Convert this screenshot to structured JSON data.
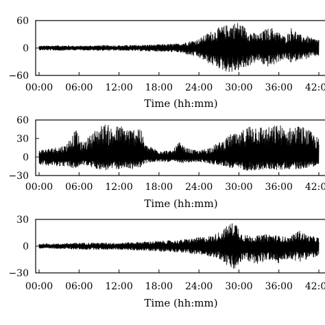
{
  "chart_data": [
    {
      "type": "line",
      "title": "",
      "xlabel": "Time (hh:mm)",
      "ylabel": "",
      "xlim": [
        "00:00",
        "42:00"
      ],
      "ylim": [
        -60,
        60
      ],
      "x_ticks": [
        "00:00",
        "06:00",
        "12:00",
        "18:00",
        "24:00",
        "30:00",
        "36:00",
        "42:00"
      ],
      "y_ticks": [
        "60",
        "0",
        "−60"
      ],
      "grid": false,
      "series": [
        {
          "x": [
            "00:00",
            "03:00",
            "06:00",
            "09:00",
            "12:00",
            "15:00",
            "18:00",
            "21:00",
            "24:00",
            "25:30",
            "27:00",
            "28:00",
            "29:00",
            "30:00",
            "31:00",
            "32:00",
            "33:00",
            "34:00",
            "35:00",
            "36:00",
            "37:00",
            "38:00",
            "39:00",
            "40:00",
            "41:00",
            "42:00"
          ],
          "upper": [
            5,
            6,
            5,
            6,
            6,
            7,
            8,
            10,
            20,
            35,
            45,
            50,
            55,
            58,
            45,
            35,
            30,
            42,
            45,
            35,
            25,
            48,
            30,
            28,
            22,
            20
          ],
          "lower": [
            -5,
            -6,
            -5,
            -6,
            -6,
            -7,
            -8,
            -10,
            -22,
            -35,
            -45,
            -52,
            -55,
            -50,
            -45,
            -35,
            -30,
            -42,
            -40,
            -30,
            -25,
            -35,
            -25,
            -25,
            -20,
            -18
          ]
        }
      ]
    },
    {
      "type": "line",
      "title": "",
      "xlabel": "Time (hh:mm)",
      "ylabel": "",
      "xlim": [
        "00:00",
        "42:00"
      ],
      "ylim": [
        -30,
        60
      ],
      "x_ticks": [
        "00:00",
        "06:00",
        "12:00",
        "18:00",
        "24:00",
        "30:00",
        "36:00",
        "42:00"
      ],
      "y_ticks": [
        "60",
        "30",
        "0",
        "−30"
      ],
      "grid": false,
      "series": [
        {
          "x": [
            "00:00",
            "02:00",
            "04:00",
            "05:30",
            "06:30",
            "08:00",
            "09:00",
            "10:00",
            "11:00",
            "12:00",
            "13:00",
            "14:00",
            "15:00",
            "16:00",
            "18:00",
            "20:00",
            "21:00",
            "22:00",
            "24:00",
            "26:00",
            "28:00",
            "29:00",
            "30:00",
            "31:00",
            "32:00",
            "33:00",
            "34:00",
            "35:00",
            "36:00",
            "37:00",
            "38:00",
            "39:00",
            "40:00",
            "41:00",
            "42:00"
          ],
          "upper": [
            12,
            15,
            20,
            45,
            22,
            40,
            50,
            55,
            48,
            52,
            50,
            45,
            55,
            20,
            12,
            10,
            25,
            15,
            10,
            18,
            30,
            40,
            35,
            50,
            55,
            52,
            48,
            50,
            55,
            45,
            50,
            52,
            48,
            40,
            30
          ],
          "lower": [
            -12,
            -15,
            -15,
            -20,
            -12,
            -18,
            -20,
            -22,
            -20,
            -20,
            -18,
            -20,
            -18,
            -10,
            -8,
            -8,
            -10,
            -10,
            -8,
            -12,
            -15,
            -20,
            -18,
            -22,
            -22,
            -22,
            -20,
            -20,
            -22,
            -20,
            -20,
            -20,
            -18,
            -16,
            -14
          ]
        }
      ]
    },
    {
      "type": "line",
      "title": "",
      "xlabel": "Time (hh:mm)",
      "ylabel": "",
      "xlim": [
        "00:00",
        "42:00"
      ],
      "ylim": [
        -30,
        30
      ],
      "x_ticks": [
        "00:00",
        "06:00",
        "12:00",
        "18:00",
        "24:00",
        "30:00",
        "36:00",
        "42:00"
      ],
      "y_ticks": [
        "30",
        "0",
        "−30"
      ],
      "grid": false,
      "series": [
        {
          "x": [
            "00:00",
            "03:00",
            "06:00",
            "09:00",
            "12:00",
            "15:00",
            "18:00",
            "21:00",
            "24:00",
            "26:00",
            "27:30",
            "28:30",
            "29:30",
            "30:30",
            "31:30",
            "33:00",
            "34:30",
            "36:00",
            "37:30",
            "39:00",
            "40:30",
            "42:00"
          ],
          "upper": [
            3,
            3,
            4,
            4,
            4,
            5,
            6,
            7,
            10,
            12,
            18,
            25,
            28,
            14,
            12,
            12,
            14,
            12,
            10,
            18,
            12,
            10
          ],
          "lower": [
            -3,
            -3,
            -4,
            -4,
            -4,
            -5,
            -6,
            -7,
            -10,
            -12,
            -16,
            -25,
            -28,
            -16,
            -18,
            -20,
            -16,
            -20,
            -14,
            -18,
            -14,
            -12
          ]
        }
      ]
    }
  ]
}
